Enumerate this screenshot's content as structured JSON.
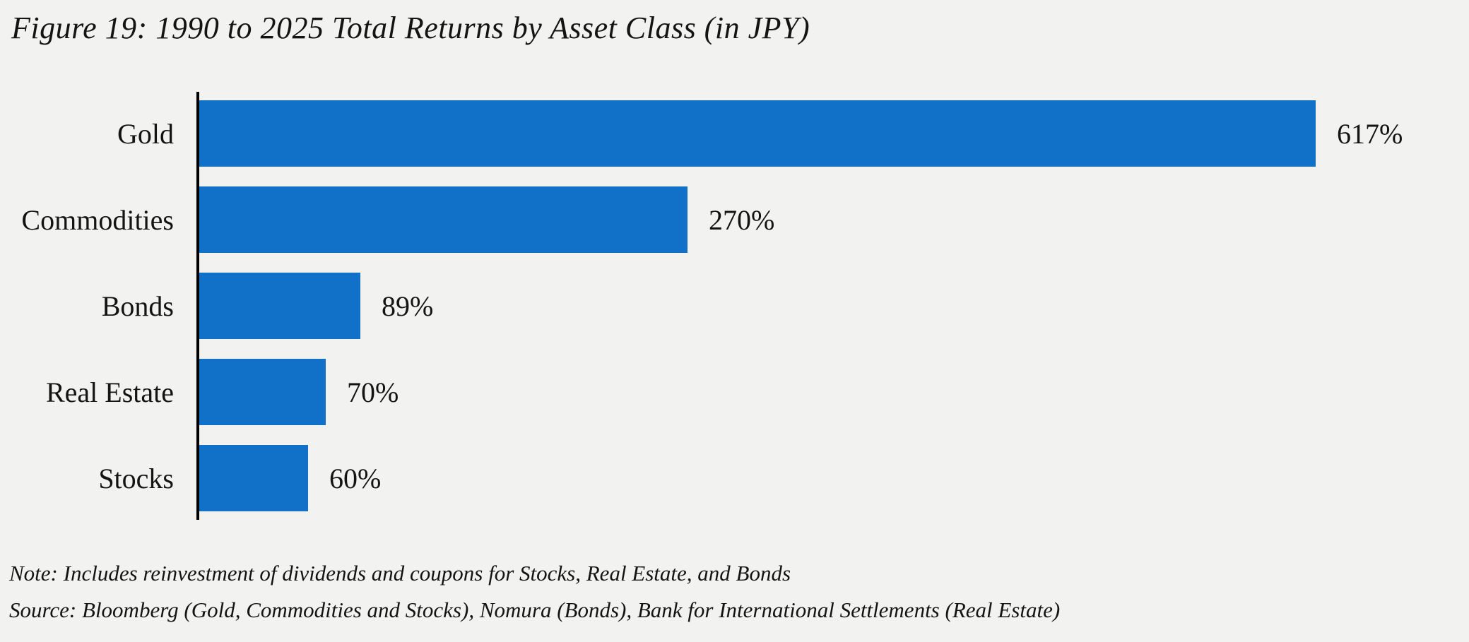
{
  "title": "Figure 19: 1990 to 2025 Total Returns by Asset Class (in JPY)",
  "chart_data": {
    "type": "bar",
    "orientation": "horizontal",
    "title": "Figure 19: 1990 to 2025 Total Returns by Asset Class (in JPY)",
    "categories": [
      "Gold",
      "Commodities",
      "Bonds",
      "Real Estate",
      "Stocks"
    ],
    "values": [
      617,
      270,
      89,
      70,
      60
    ],
    "value_labels": [
      "617%",
      "270%",
      "89%",
      "70%",
      "60%"
    ],
    "unit": "%",
    "xlim": [
      0,
      700
    ],
    "grid": false,
    "legend": "none",
    "bar_color": "#1170C8",
    "axis_color": "#000000"
  },
  "notes": {
    "note": "Note: Includes reinvestment of dividends and coupons for Stocks, Real Estate, and Bonds",
    "source": "Source: Bloomberg (Gold, Commodities and Stocks), Nomura (Bonds), Bank for International Settlements (Real Estate)"
  },
  "colors": {
    "background": "#F2F2F0",
    "bar": "#1170C8",
    "axis": "#000000",
    "text": "#141414"
  }
}
